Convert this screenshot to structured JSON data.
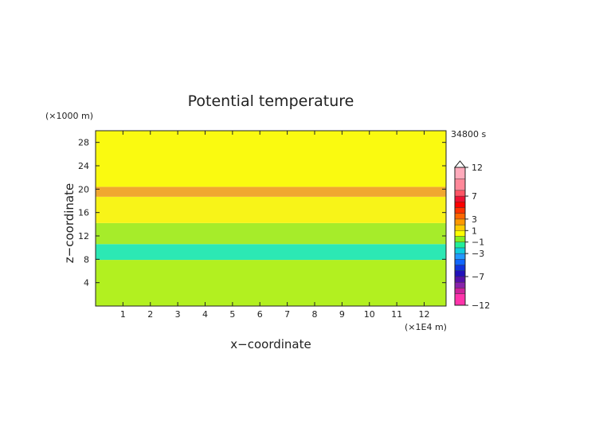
{
  "chart_data": {
    "type": "heatmap",
    "title": "Potential temperature",
    "xlabel": "x−coordinate",
    "ylabel": "z−coordinate",
    "x_unit": "(×1E4 m)",
    "y_unit": "(×1000 m)",
    "time_label": "34800 s",
    "xlim": [
      0,
      12.8
    ],
    "ylim": [
      0,
      30
    ],
    "x_ticks": [
      "1",
      "2",
      "3",
      "4",
      "5",
      "6",
      "7",
      "8",
      "9",
      "10",
      "11",
      "12"
    ],
    "y_ticks": [
      "4",
      "8",
      "12",
      "16",
      "20",
      "24",
      "28"
    ],
    "bands": [
      {
        "z_bottom": 0,
        "z_top": 7.9,
        "color": "#b2f020",
        "level": "-1 to 0"
      },
      {
        "z_bottom": 7.9,
        "z_top": 10.6,
        "color": "#2ce8b4",
        "level": "-2 to -1"
      },
      {
        "z_bottom": 10.6,
        "z_top": 14.2,
        "color": "#a6ec2a",
        "level": "-1 to 0"
      },
      {
        "z_bottom": 14.2,
        "z_top": 18.7,
        "color": "#f8f418",
        "level": "0 to 1"
      },
      {
        "z_bottom": 18.7,
        "z_top": 20.4,
        "color": "#f0a830",
        "level": "2 to 3"
      },
      {
        "z_bottom": 20.4,
        "z_top": 30,
        "color": "#fafa10",
        "level": "0 to 1"
      }
    ],
    "colorbar": {
      "labels": [
        "12",
        "7",
        "3",
        "1",
        "−1",
        "−3",
        "−7",
        "−12"
      ],
      "levels": [
        {
          "lo": -12,
          "hi": -10,
          "color": "#ff33aa"
        },
        {
          "lo": -10,
          "hi": -9,
          "color": "#cc2299"
        },
        {
          "lo": -9,
          "hi": -8,
          "color": "#8822aa"
        },
        {
          "lo": -8,
          "hi": -7,
          "color": "#5511aa"
        },
        {
          "lo": -7,
          "hi": -6,
          "color": "#2211bb"
        },
        {
          "lo": -6,
          "hi": -5,
          "color": "#1133dd"
        },
        {
          "lo": -5,
          "hi": -4,
          "color": "#1166ff"
        },
        {
          "lo": -4,
          "hi": -3,
          "color": "#2299ff"
        },
        {
          "lo": -3,
          "hi": -2,
          "color": "#11ccdd"
        },
        {
          "lo": -2,
          "hi": -1,
          "color": "#22ee99"
        },
        {
          "lo": -1,
          "hi": 0,
          "color": "#88ee22"
        },
        {
          "lo": 0,
          "hi": 1,
          "color": "#ffff00"
        },
        {
          "lo": 1,
          "hi": 2,
          "color": "#ffcc00"
        },
        {
          "lo": 2,
          "hi": 3,
          "color": "#ff9900"
        },
        {
          "lo": 3,
          "hi": 4,
          "color": "#ff6600"
        },
        {
          "lo": 4,
          "hi": 5,
          "color": "#ff3300"
        },
        {
          "lo": 5,
          "hi": 6,
          "color": "#ff0000"
        },
        {
          "lo": 6,
          "hi": 7,
          "color": "#ee1133"
        },
        {
          "lo": 7,
          "hi": 8,
          "color": "#ff5566"
        },
        {
          "lo": 8,
          "hi": 10,
          "color": "#ff8899"
        },
        {
          "lo": 10,
          "hi": 12,
          "color": "#ffaabb"
        }
      ]
    }
  }
}
